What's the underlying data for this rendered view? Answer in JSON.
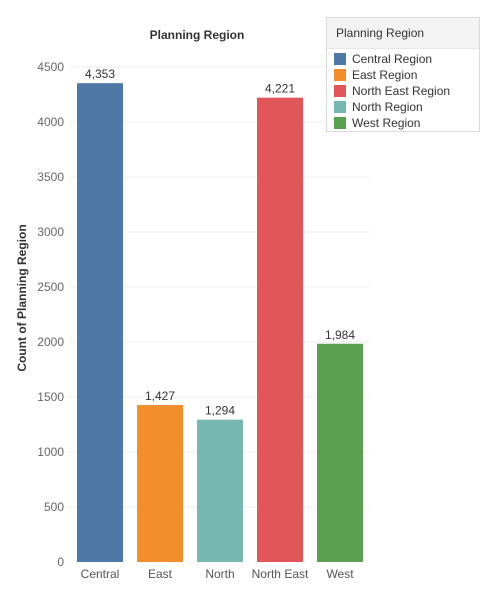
{
  "chart_data": {
    "type": "bar",
    "title": "Planning Region",
    "xlabel": "",
    "ylabel": "Count of Planning Region",
    "categories": [
      "Central",
      "East",
      "North",
      "North East",
      "West"
    ],
    "values": [
      4353,
      1427,
      1294,
      4221,
      1984
    ],
    "data_labels": [
      "4,353",
      "1,427",
      "1,294",
      "4,221",
      "1,984"
    ],
    "colors": [
      "#4e79a7",
      "#f28e2b",
      "#76b7b2",
      "#e15759",
      "#59a14f"
    ],
    "ylim": [
      0,
      4500
    ],
    "yticks": [
      0,
      500,
      1000,
      1500,
      2000,
      2500,
      3000,
      3500,
      4000,
      4500
    ],
    "grid": true,
    "legend": {
      "title": "Planning Region",
      "placement": "top-right",
      "entries": [
        {
          "label": "Central Region",
          "color": "#4e79a7"
        },
        {
          "label": "East Region",
          "color": "#f28e2b"
        },
        {
          "label": "North East Region",
          "color": "#e15759"
        },
        {
          "label": "North Region",
          "color": "#76b7b2"
        },
        {
          "label": "West Region",
          "color": "#59a14f"
        }
      ]
    }
  }
}
